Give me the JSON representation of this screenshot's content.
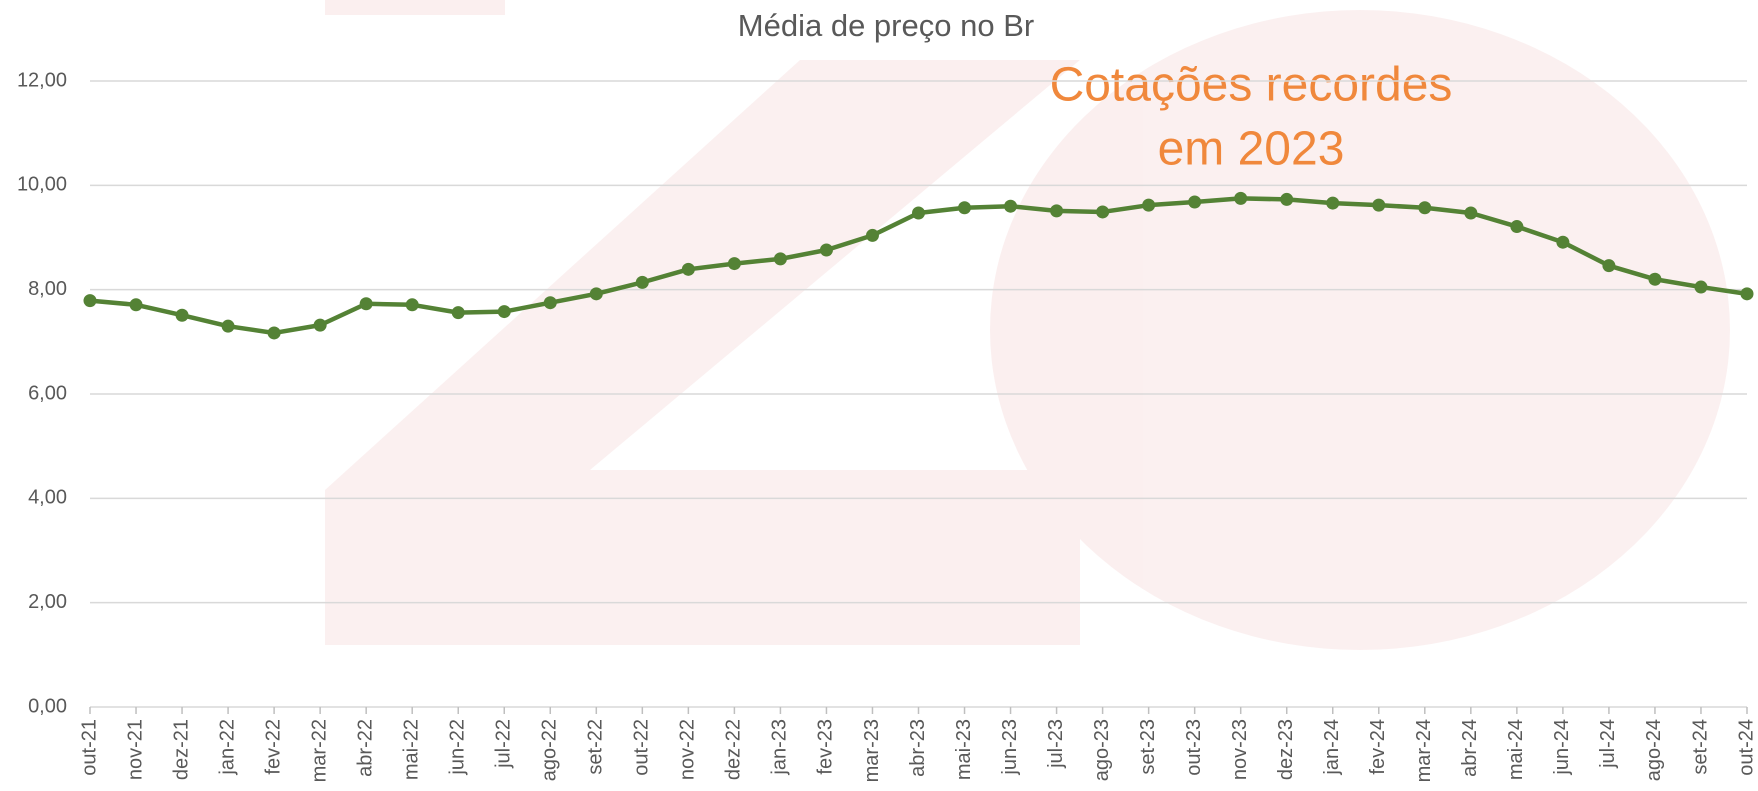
{
  "chart_data": {
    "type": "line",
    "title": "Média de preço no Br",
    "annotation": [
      "Cotações recordes",
      "em 2023"
    ],
    "categories": [
      "out-21",
      "nov-21",
      "dez-21",
      "jan-22",
      "fev-22",
      "mar-22",
      "abr-22",
      "mai-22",
      "jun-22",
      "jul-22",
      "ago-22",
      "set-22",
      "out-22",
      "nov-22",
      "dez-22",
      "jan-23",
      "fev-23",
      "mar-23",
      "abr-23",
      "mai-23",
      "jun-23",
      "jul-23",
      "ago-23",
      "set-23",
      "out-23",
      "nov-23",
      "dez-23",
      "jan-24",
      "fev-24",
      "mar-24",
      "abr-24",
      "mai-24",
      "jun-24",
      "jul-24",
      "ago-24",
      "set-24",
      "out-24"
    ],
    "series": [
      {
        "color": "#548235",
        "values": [
          7.79,
          7.71,
          7.51,
          7.3,
          7.17,
          7.32,
          7.73,
          7.71,
          7.56,
          7.58,
          7.75,
          7.92,
          8.14,
          8.39,
          8.5,
          8.59,
          8.76,
          9.04,
          9.47,
          9.57,
          9.6,
          9.51,
          9.49,
          9.62,
          9.68,
          9.75,
          9.73,
          9.66,
          9.62,
          9.57,
          9.47,
          9.21,
          8.91,
          8.46,
          8.2,
          8.05,
          7.92
        ]
      }
    ],
    "ylim": [
      0,
      12
    ],
    "yticks": [
      {
        "value": 0,
        "label": "0,00"
      },
      {
        "value": 2,
        "label": "2,00"
      },
      {
        "value": 4,
        "label": "4,00"
      },
      {
        "value": 6,
        "label": "6,00"
      },
      {
        "value": 8,
        "label": "8,00"
      },
      {
        "value": 10,
        "label": "10,00"
      },
      {
        "value": 12,
        "label": "12,00"
      }
    ],
    "grid": true
  }
}
